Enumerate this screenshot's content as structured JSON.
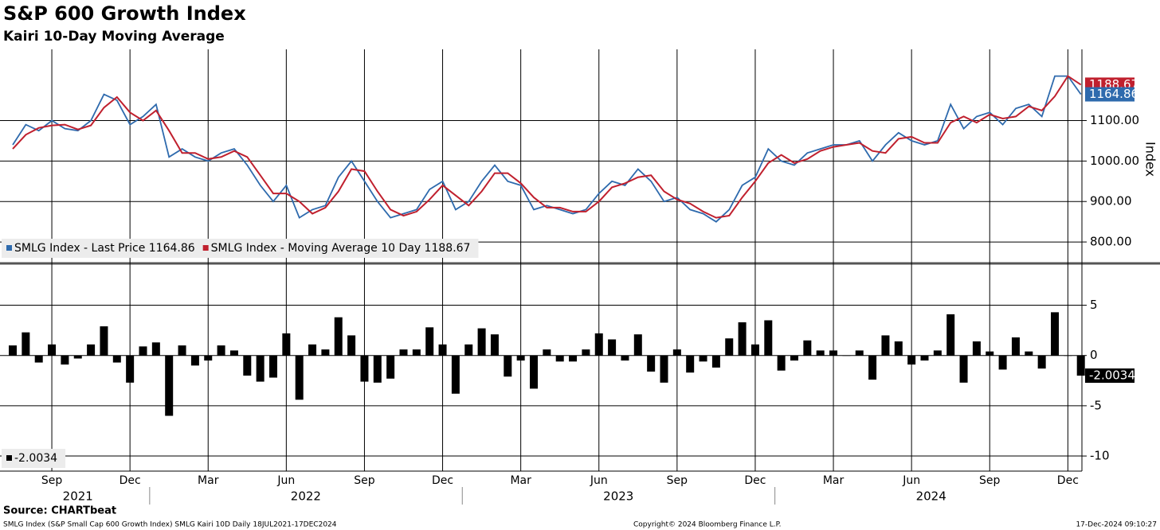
{
  "header": {
    "title": "S&P 600 Growth Index",
    "subtitle": "Kairi 10-Day Moving Average"
  },
  "chart_data": [
    {
      "type": "line",
      "y_label": "Index",
      "grid": true,
      "legend": "bottom-left",
      "categories": [
        null,
        null,
        null,
        "Sep",
        null,
        null,
        null,
        null,
        null,
        "Dec",
        null,
        null,
        null,
        null,
        null,
        "Mar",
        null,
        null,
        null,
        null,
        null,
        "Jun",
        null,
        null,
        null,
        null,
        null,
        "Sep",
        null,
        null,
        null,
        null,
        null,
        "Dec",
        null,
        null,
        null,
        null,
        null,
        "Mar",
        null,
        null,
        null,
        null,
        null,
        "Jun",
        null,
        null,
        null,
        null,
        null,
        "Sep",
        null,
        null,
        null,
        null,
        null,
        "Dec",
        null,
        null,
        null,
        null,
        null,
        "Mar",
        null,
        null,
        null,
        null,
        null,
        "Jun",
        null,
        null,
        null,
        null,
        null,
        "Sep",
        null,
        null,
        null,
        null,
        null,
        "Dec",
        null
      ],
      "x_groups": [
        {
          "label": "2021",
          "from": 0,
          "to": 10
        },
        {
          "label": "2022",
          "from": 11,
          "to": 34
        },
        {
          "label": "2023",
          "from": 35,
          "to": 58
        },
        {
          "label": "2024",
          "from": 59,
          "to": 82
        }
      ],
      "ylim": [
        751,
        1276
      ],
      "yticks": [
        {
          "value": 800,
          "label": "800.00"
        },
        {
          "value": 900,
          "label": "900.00"
        },
        {
          "value": 1000,
          "label": "1000.00"
        },
        {
          "value": 1100,
          "label": "1100.00"
        }
      ],
      "series": [
        {
          "name": "SMLG Index - Last Price 1164.86",
          "color": "#2e6aad",
          "values": [
            1040,
            1090,
            1075,
            1100,
            1080,
            1075,
            1100,
            1165,
            1150,
            1090,
            1110,
            1140,
            1010,
            1030,
            1010,
            1000,
            1020,
            1030,
            990,
            940,
            900,
            940,
            860,
            880,
            890,
            960,
            1000,
            950,
            900,
            860,
            870,
            880,
            930,
            950,
            880,
            900,
            950,
            990,
            950,
            940,
            880,
            890,
            880,
            870,
            880,
            920,
            950,
            940,
            980,
            950,
            900,
            910,
            880,
            870,
            850,
            880,
            940,
            960,
            1030,
            1000,
            990,
            1020,
            1030,
            1040,
            1040,
            1050,
            1000,
            1040,
            1070,
            1050,
            1040,
            1050,
            1140,
            1080,
            1110,
            1120,
            1090,
            1130,
            1140,
            1110,
            1210,
            1210,
            1164.86
          ]
        },
        {
          "name": "SMLG Index - Moving Average 10 Day 1188.67",
          "color": "#c0202e",
          "values": [
            1030,
            1065,
            1082,
            1088,
            1090,
            1078,
            1088,
            1132,
            1158,
            1120,
            1100,
            1125,
            1075,
            1020,
            1020,
            1005,
            1010,
            1025,
            1010,
            965,
            920,
            920,
            900,
            870,
            885,
            925,
            980,
            975,
            925,
            880,
            865,
            875,
            905,
            940,
            915,
            890,
            925,
            970,
            970,
            945,
            910,
            885,
            885,
            875,
            875,
            900,
            935,
            945,
            960,
            965,
            925,
            905,
            895,
            875,
            860,
            865,
            910,
            950,
            995,
            1015,
            995,
            1005,
            1025,
            1035,
            1040,
            1045,
            1025,
            1020,
            1055,
            1060,
            1045,
            1045,
            1095,
            1110,
            1095,
            1115,
            1105,
            1110,
            1135,
            1125,
            1160,
            1210,
            1188.67
          ]
        }
      ]
    },
    {
      "type": "bar",
      "ylim": [
        -11.5,
        9
      ],
      "yticks": [
        -10,
        -5,
        0,
        5
      ],
      "grid": true,
      "legend": "bottom-left",
      "series": [
        {
          "name": "-2.0034",
          "color": "#000000",
          "values": [
            1.0,
            2.3,
            -0.7,
            1.1,
            -0.9,
            -0.3,
            1.1,
            2.9,
            -0.7,
            -2.7,
            0.9,
            1.3,
            -6.0,
            1.0,
            -1.0,
            -0.5,
            1.0,
            0.5,
            -2.0,
            -2.6,
            -2.2,
            2.2,
            -4.4,
            1.1,
            0.6,
            3.8,
            2.0,
            -2.6,
            -2.7,
            -2.3,
            0.6,
            0.6,
            2.8,
            1.1,
            -3.8,
            1.1,
            2.7,
            2.1,
            -2.1,
            -0.5,
            -3.3,
            0.6,
            -0.6,
            -0.6,
            0.6,
            2.2,
            1.6,
            -0.5,
            2.1,
            -1.6,
            -2.7,
            0.6,
            -1.7,
            -0.6,
            -1.2,
            1.7,
            3.3,
            1.1,
            3.5,
            -1.5,
            -0.5,
            1.5,
            0.5,
            0.5,
            0.0,
            0.5,
            -2.4,
            2.0,
            1.4,
            -0.9,
            -0.5,
            0.5,
            4.1,
            -2.7,
            1.4,
            0.4,
            -1.4,
            1.8,
            0.4,
            -1.3,
            4.3,
            0.0,
            -2.0034
          ]
        }
      ]
    }
  ],
  "footer": {
    "source": "Source: CHARTbeat",
    "description": "SMLG Index (S&P Small Cap 600 Growth Index) SMLG Kairi 10D  Daily 18JUL2021-17DEC2024",
    "copyright": "Copyright© 2024 Bloomberg Finance L.P.",
    "timestamp": "17-Dec-2024 09:10:27"
  }
}
